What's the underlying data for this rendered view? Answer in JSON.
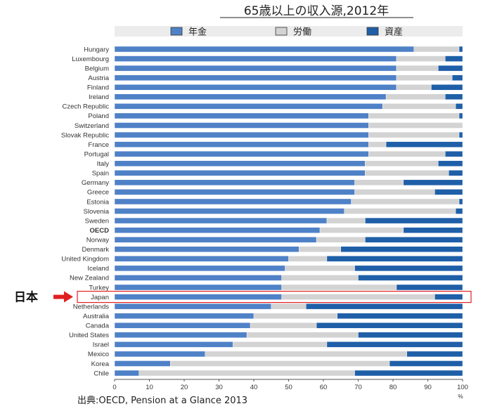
{
  "chart_data": {
    "type": "bar",
    "orientation": "horizontal",
    "stacked": true,
    "title": "65歳以上の収入源,2012年",
    "categories": [
      "Hungary",
      "Luxembourg",
      "Belgium",
      "Austria",
      "Finland",
      "Ireland",
      "Czech Republic",
      "Poland",
      "Switzerland",
      "Slovak Republic",
      "France",
      "Portugal",
      "Italy",
      "Spain",
      "Germany",
      "Greece",
      "Estonia",
      "Slovenia",
      "Sweden",
      "OECD",
      "Norway",
      "Denmark",
      "United Kingdom",
      "Iceland",
      "New Zealand",
      "Turkey",
      "Japan",
      "Netherlands",
      "Australia",
      "Canada",
      "United States",
      "Israel",
      "Mexico",
      "Korea",
      "Chile"
    ],
    "highlighted_categories": [
      "OECD"
    ],
    "series": [
      {
        "name": "年金",
        "color": "#4f81c7",
        "values": [
          86,
          81,
          81,
          81,
          81,
          78,
          77,
          73,
          73,
          73,
          73,
          73,
          72,
          72,
          69,
          69,
          68,
          66,
          61,
          59,
          58,
          53,
          50,
          49,
          48,
          48,
          48,
          45,
          40,
          39,
          38,
          34,
          26,
          16,
          7
        ]
      },
      {
        "name": "労働",
        "color": "#d3d3d3",
        "values": [
          13,
          14,
          12,
          16,
          10,
          17,
          21,
          26,
          27,
          26,
          5,
          22,
          21,
          24,
          14,
          23,
          31,
          32,
          11,
          24,
          14,
          12,
          11,
          20,
          22,
          33,
          44,
          10,
          24,
          19,
          32,
          27,
          58,
          63,
          62
        ]
      },
      {
        "name": "資産",
        "color": "#1f5fa8",
        "values": [
          1,
          5,
          7,
          3,
          9,
          5,
          2,
          1,
          0,
          1,
          22,
          5,
          7,
          4,
          17,
          8,
          1,
          2,
          28,
          17,
          28,
          35,
          39,
          31,
          30,
          19,
          8,
          45,
          36,
          42,
          30,
          39,
          16,
          21,
          31
        ]
      }
    ],
    "xlim": [
      0,
      100
    ],
    "xticks": [
      0,
      10,
      20,
      30,
      40,
      50,
      60,
      70,
      80,
      90,
      100
    ],
    "xunit": "%",
    "legend": "top",
    "grid": false
  },
  "annotation": {
    "label": "日本",
    "target": "Japan"
  },
  "source": "出典:OECD, Pension at a Glance 2013"
}
